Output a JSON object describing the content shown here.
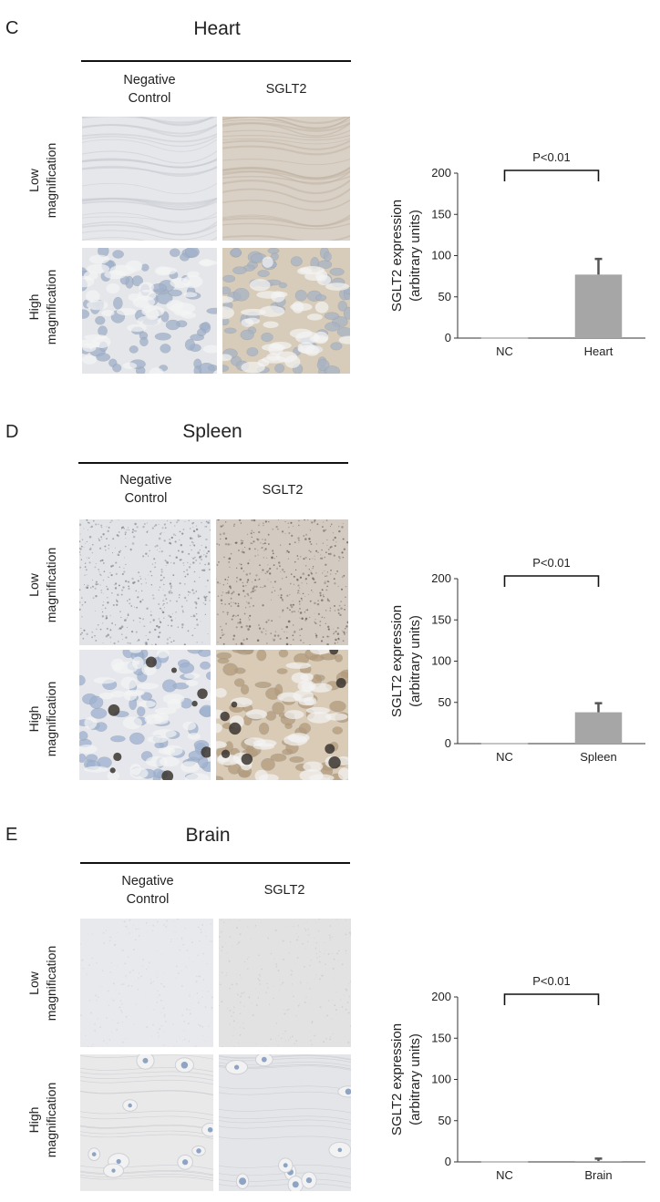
{
  "panels": [
    {
      "letter": "C",
      "tissue": "Heart",
      "col_headers": [
        "Negative\nControl",
        "SGLT2"
      ],
      "row_labels": [
        "Low\nmagnification",
        "High\nmagnification"
      ],
      "images": {
        "nc_low": {
          "bg": "#e6e7ea",
          "texture": "fibers",
          "stain": "#c9ccd3"
        },
        "sg_low": {
          "bg": "#d9d1c6",
          "texture": "fibers",
          "stain": "#c1b5a4"
        },
        "nc_high": {
          "bg": "#e4e6ea",
          "texture": "cells",
          "stain": "#9fb0c9",
          "dark": 0
        },
        "sg_high": {
          "bg": "#d7cbb9",
          "texture": "cells",
          "stain": "#a7b3c4",
          "dark": 0
        }
      },
      "chart_data": {
        "type": "bar",
        "categories": [
          "NC",
          "Heart"
        ],
        "values": [
          0,
          77
        ],
        "errors": [
          0,
          19
        ],
        "ylim": [
          0,
          200
        ],
        "yticks": [
          0,
          50,
          100,
          150,
          200
        ],
        "ylabel": "SGLT2 expression\n(arbitrary units)",
        "annotation": "P<0.01",
        "bar_color": "#a6a6a6"
      }
    },
    {
      "letter": "D",
      "tissue": "Spleen",
      "col_headers": [
        "Negative\nControl",
        "SGLT2"
      ],
      "row_labels": [
        "Low\nmagnification",
        "High\nmagnification"
      ],
      "images": {
        "nc_low": {
          "bg": "#e2e3e7",
          "texture": "speckle",
          "stain": "#7f848d"
        },
        "sg_low": {
          "bg": "#d3cbc2",
          "texture": "speckle",
          "stain": "#6a625a"
        },
        "nc_high": {
          "bg": "#e5e7ec",
          "texture": "cells",
          "stain": "#9db1cf",
          "dark": 1
        },
        "sg_high": {
          "bg": "#d9cbb5",
          "texture": "cells",
          "stain": "#b39b7c",
          "dark": 1
        }
      },
      "chart_data": {
        "type": "bar",
        "categories": [
          "NC",
          "Spleen"
        ],
        "values": [
          0,
          38
        ],
        "errors": [
          0,
          11
        ],
        "ylim": [
          0,
          200
        ],
        "yticks": [
          0,
          50,
          100,
          150,
          200
        ],
        "ylabel": "SGLT2 expression\n(arbitrary units)",
        "annotation": "P<0.01",
        "bar_color": "#a6a6a6"
      }
    },
    {
      "letter": "E",
      "tissue": "Brain",
      "col_headers": [
        "Negative\nControl",
        "SGLT2"
      ],
      "row_labels": [
        "Low\nmagnification",
        "High\nmagnification"
      ],
      "images": {
        "nc_low": {
          "bg": "#e8e9ed",
          "texture": "faint",
          "stain": "#d0d2d8"
        },
        "sg_low": {
          "bg": "#e3e2e3",
          "texture": "faint",
          "stain": "#c8c4c0"
        },
        "nc_high": {
          "bg": "#e9e9ea",
          "texture": "neuropil",
          "stain": "#8ea4c4",
          "dark": 0
        },
        "sg_high": {
          "bg": "#e4e5e8",
          "texture": "neuropil",
          "stain": "#8ea4c4",
          "dark": 0
        }
      },
      "chart_data": {
        "type": "bar",
        "categories": [
          "NC",
          "Brain"
        ],
        "values": [
          0,
          1
        ],
        "errors": [
          0,
          3
        ],
        "ylim": [
          0,
          200
        ],
        "yticks": [
          0,
          50,
          100,
          150,
          200
        ],
        "ylabel": "SGLT2 expression\n(arbitrary units)",
        "annotation": "P<0.01",
        "bar_color": "#a6a6a6"
      }
    }
  ]
}
